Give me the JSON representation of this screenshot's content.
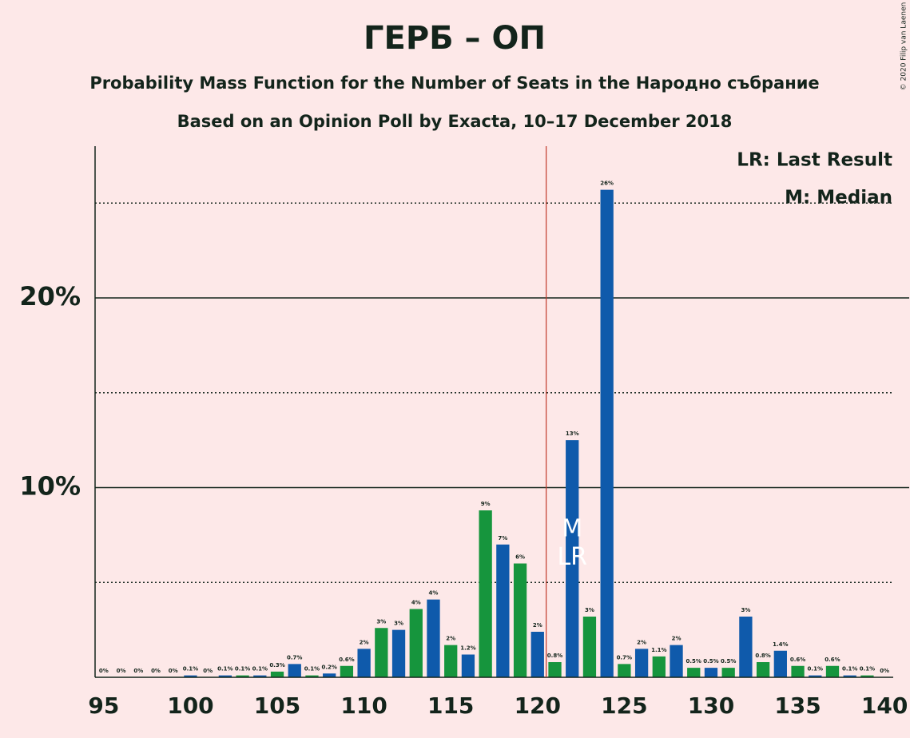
{
  "chart_data": {
    "type": "bar",
    "title": "ГЕРБ – ОП",
    "subtitle": "Probability Mass Function for the Number of Seats in the Народно събрание",
    "subtitle2": "Based on an Opinion Poll by Exacta, 10–17 December 2018",
    "copyright": "© 2020 Filip van Laenen",
    "legend": [
      "LR: Last Result",
      "M: Median"
    ],
    "legend_position": "upper right",
    "colors": [
      "#0f5aab",
      "#16953d"
    ],
    "x": [
      95,
      96,
      97,
      98,
      99,
      100,
      101,
      102,
      103,
      104,
      105,
      106,
      107,
      108,
      109,
      110,
      111,
      112,
      113,
      114,
      115,
      116,
      117,
      118,
      119,
      120,
      121,
      122,
      123,
      124,
      125,
      126,
      127,
      128,
      129,
      130,
      131,
      132,
      133,
      134,
      135,
      136,
      137,
      138,
      139,
      140
    ],
    "values": [
      0,
      0,
      0,
      0,
      0,
      0.1,
      0,
      0.1,
      0.1,
      0.1,
      0.3,
      0.7,
      0.1,
      0.2,
      0.6,
      1.5,
      2.6,
      2.5,
      3.6,
      4.1,
      1.7,
      1.2,
      8.8,
      7.0,
      6.0,
      2.4,
      0.8,
      12.5,
      3.2,
      25.7,
      0.7,
      1.5,
      1.1,
      1.7,
      0.5,
      0.5,
      0.5,
      3.2,
      0.8,
      1.4,
      0.6,
      0.1,
      0.6,
      0.1,
      0.1,
      0
    ],
    "value_labels": [
      "0%",
      "0%",
      "0%",
      "0%",
      "0%",
      "0.1%",
      "0%",
      "0.1%",
      "0.1%",
      "0.1%",
      "0.3%",
      "0.7%",
      "0.1%",
      "0.2%",
      "0.6%",
      "2%",
      "3%",
      "3%",
      "4%",
      "4%",
      "2%",
      "1.2%",
      "9%",
      "7%",
      "6%",
      "2%",
      "0.8%",
      "13%",
      "3%",
      "26%",
      "0.7%",
      "2%",
      "1.1%",
      "2%",
      "0.5%",
      "0.5%",
      "0.5%",
      "3%",
      "0.8%",
      "1.4%",
      "0.6%",
      "0.1%",
      "0.6%",
      "0.1%",
      "0.1%",
      "0%"
    ],
    "median": {
      "label": "M",
      "x": 122
    },
    "last_result": {
      "label": "LR",
      "x": 122
    },
    "vline_x": 120.5,
    "xlim": [
      94.5,
      140.5
    ],
    "xticks": [
      95,
      100,
      105,
      110,
      115,
      120,
      125,
      130,
      135,
      140
    ],
    "ylim": [
      0,
      28
    ],
    "yticks": [
      {
        "value": 10,
        "label": "10%"
      },
      {
        "value": 20,
        "label": "20%"
      }
    ],
    "yticks_minor": [
      5,
      15,
      25
    ],
    "grid": true
  }
}
